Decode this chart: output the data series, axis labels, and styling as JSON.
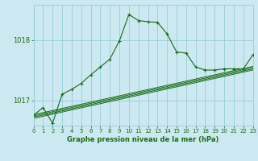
{
  "title": "Graphe pression niveau de la mer (hPa)",
  "background_color": "#cce8f0",
  "grid_color": "#99ccd8",
  "line_color": "#1a6b1a",
  "xlim": [
    0,
    23
  ],
  "ylim": [
    1016.58,
    1018.58
  ],
  "yticks": [
    1017,
    1018
  ],
  "xticks": [
    0,
    1,
    2,
    3,
    4,
    5,
    6,
    7,
    8,
    9,
    10,
    11,
    12,
    13,
    14,
    15,
    16,
    17,
    18,
    19,
    20,
    21,
    22,
    23
  ],
  "main_series": [
    [
      0,
      1016.75
    ],
    [
      1,
      1016.88
    ],
    [
      2,
      1016.62
    ],
    [
      3,
      1017.1
    ],
    [
      4,
      1017.18
    ],
    [
      5,
      1017.28
    ],
    [
      6,
      1017.42
    ],
    [
      7,
      1017.55
    ],
    [
      8,
      1017.68
    ],
    [
      9,
      1017.98
    ],
    [
      10,
      1018.42
    ],
    [
      11,
      1018.32
    ],
    [
      12,
      1018.3
    ],
    [
      13,
      1018.29
    ],
    [
      14,
      1018.1
    ],
    [
      15,
      1017.8
    ],
    [
      16,
      1017.78
    ],
    [
      17,
      1017.55
    ],
    [
      18,
      1017.5
    ],
    [
      19,
      1017.5
    ],
    [
      20,
      1017.52
    ],
    [
      21,
      1017.52
    ],
    [
      22,
      1017.52
    ],
    [
      23,
      1017.75
    ]
  ],
  "band_lines": [
    [
      [
        0,
        1016.7
      ],
      [
        23,
        1017.5
      ]
    ],
    [
      [
        0,
        1016.72
      ],
      [
        23,
        1017.52
      ]
    ],
    [
      [
        0,
        1016.74
      ],
      [
        23,
        1017.54
      ]
    ],
    [
      [
        0,
        1016.76
      ],
      [
        23,
        1017.56
      ]
    ]
  ]
}
